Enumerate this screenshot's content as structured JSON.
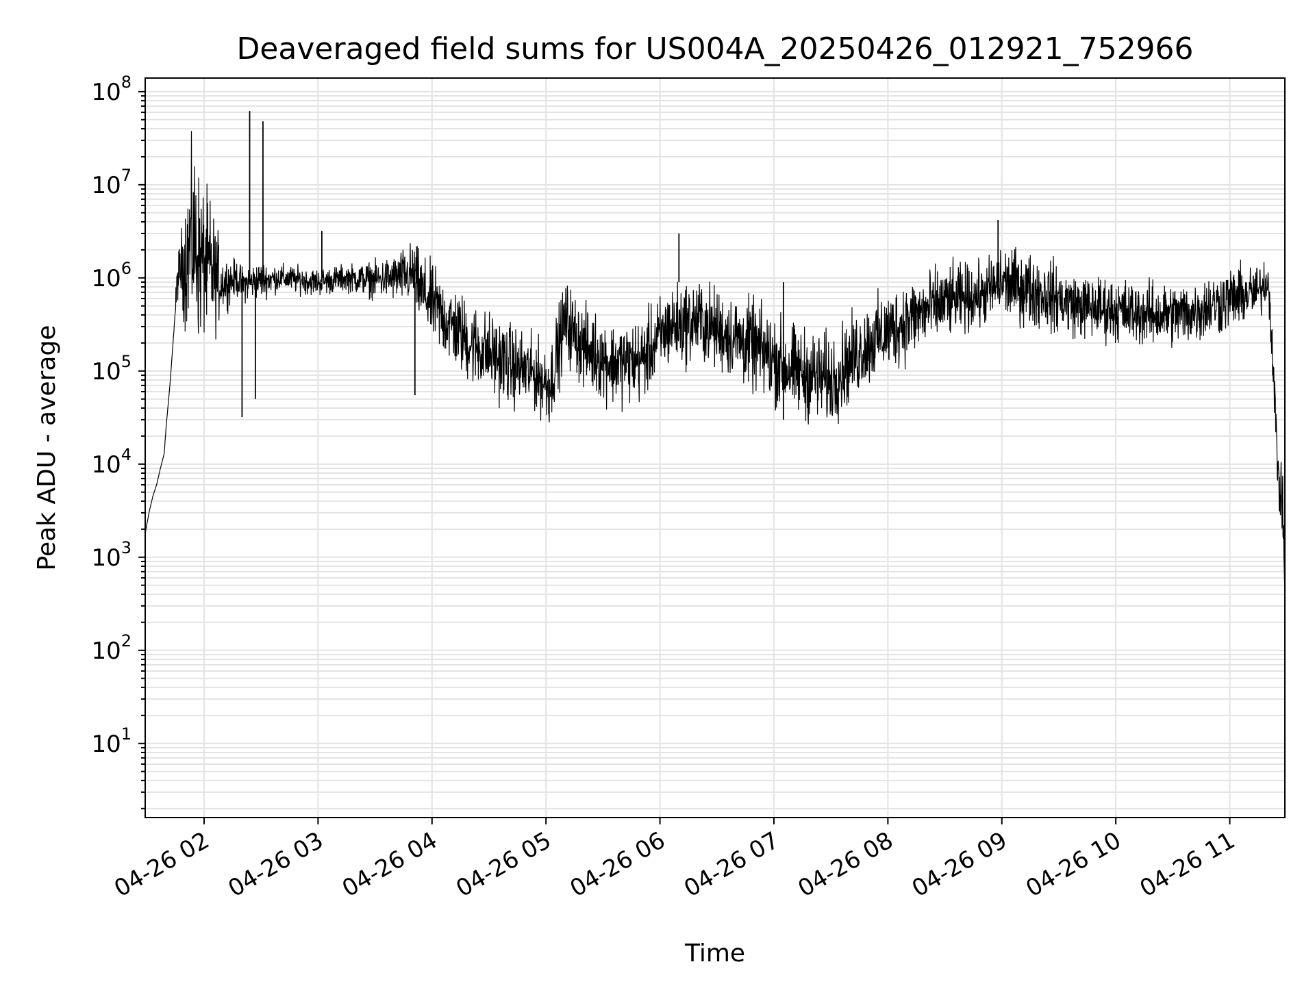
{
  "chart_data": {
    "type": "line",
    "title": "Deaveraged field sums for US004A_20250426_012921_752966",
    "xlabel": "Time",
    "ylabel": "Peak ADU - average",
    "yscale": "log",
    "xlim": [
      "2025-04-26 01:29",
      "2025-04-26 11:29"
    ],
    "ylim": [
      1.6,
      140000000
    ],
    "grid": true,
    "line_color": "#000000",
    "grid_color": "#e3e3e3",
    "x_ticks": [
      {
        "value": "2025-04-26 02:00",
        "label": "04-26 02"
      },
      {
        "value": "2025-04-26 03:00",
        "label": "04-26 03"
      },
      {
        "value": "2025-04-26 04:00",
        "label": "04-26 04"
      },
      {
        "value": "2025-04-26 05:00",
        "label": "04-26 05"
      },
      {
        "value": "2025-04-26 06:00",
        "label": "04-26 06"
      },
      {
        "value": "2025-04-26 07:00",
        "label": "04-26 07"
      },
      {
        "value": "2025-04-26 08:00",
        "label": "04-26 08"
      },
      {
        "value": "2025-04-26 09:00",
        "label": "04-26 09"
      },
      {
        "value": "2025-04-26 10:00",
        "label": "04-26 10"
      },
      {
        "value": "2025-04-26 11:00",
        "label": "04-26 11"
      }
    ],
    "y_ticks": [
      {
        "value": 10,
        "base": "10",
        "exp": "1"
      },
      {
        "value": 100,
        "base": "10",
        "exp": "2"
      },
      {
        "value": 1000,
        "base": "10",
        "exp": "3"
      },
      {
        "value": 10000,
        "base": "10",
        "exp": "4"
      },
      {
        "value": 100000,
        "base": "10",
        "exp": "5"
      },
      {
        "value": 1000000,
        "base": "10",
        "exp": "6"
      },
      {
        "value": 10000000,
        "base": "10",
        "exp": "7"
      },
      {
        "value": 100000000,
        "base": "10",
        "exp": "8"
      }
    ],
    "series": [
      {
        "x": [
          "2025-04-26 01:29",
          "2025-04-26 01:31",
          "2025-04-26 01:33",
          "2025-04-26 01:35",
          "2025-04-26 01:37",
          "2025-04-26 01:39",
          "2025-04-26 01:40",
          "2025-04-26 01:42",
          "2025-04-26 01:44",
          "2025-04-26 01:46",
          "2025-04-26 01:48",
          "2025-04-26 01:50",
          "2025-04-26 01:52",
          "2025-04-26 01:54",
          "2025-04-26 01:56",
          "2025-04-26 01:58",
          "2025-04-26 02:00",
          "2025-04-26 02:03",
          "2025-04-26 02:06",
          "2025-04-26 02:10",
          "2025-04-26 02:13",
          "2025-04-26 02:17",
          "2025-04-26 02:20",
          "2025-04-26 02:25",
          "2025-04-26 02:30",
          "2025-04-26 02:40",
          "2025-04-26 02:50",
          "2025-04-26 03:00",
          "2025-04-26 03:15",
          "2025-04-26 03:30",
          "2025-04-26 03:40",
          "2025-04-26 03:50",
          "2025-04-26 03:55",
          "2025-04-26 04:05",
          "2025-04-26 04:20",
          "2025-04-26 04:40",
          "2025-04-26 04:55",
          "2025-04-26 05:02",
          "2025-04-26 05:10",
          "2025-04-26 05:20",
          "2025-04-26 05:35",
          "2025-04-26 05:50",
          "2025-04-26 06:05",
          "2025-04-26 06:20",
          "2025-04-26 06:35",
          "2025-04-26 06:50",
          "2025-04-26 07:10",
          "2025-04-26 07:30",
          "2025-04-26 07:50",
          "2025-04-26 08:10",
          "2025-04-26 08:30",
          "2025-04-26 08:50",
          "2025-04-26 09:00",
          "2025-04-26 09:20",
          "2025-04-26 09:40",
          "2025-04-26 10:00",
          "2025-04-26 10:20",
          "2025-04-26 10:40",
          "2025-04-26 11:00",
          "2025-04-26 11:15",
          "2025-04-26 11:20",
          "2025-04-26 11:22",
          "2025-04-26 11:24",
          "2025-04-26 11:26",
          "2025-04-26 11:28",
          "2025-04-26 11:29"
        ],
        "y": [
          1800,
          3000,
          4500,
          6000,
          9000,
          13000,
          25000,
          70000,
          250000,
          1000000,
          1300000,
          1500000,
          2000000,
          2500000,
          2200000,
          1500000,
          1400000,
          1200000,
          1000000,
          900000,
          900000,
          1000000,
          850000,
          900000,
          950000,
          1000000,
          950000,
          900000,
          1000000,
          950000,
          1000000,
          1100000,
          700000,
          400000,
          200000,
          120000,
          90000,
          70000,
          350000,
          180000,
          120000,
          130000,
          300000,
          350000,
          250000,
          180000,
          100000,
          80000,
          200000,
          350000,
          550000,
          650000,
          900000,
          700000,
          500000,
          450000,
          400000,
          420000,
          600000,
          700000,
          1000000,
          300000,
          30000,
          6000,
          3000,
          400
        ],
        "noise_decades": [
          0,
          0,
          0,
          0,
          0,
          0,
          0,
          0,
          0,
          0.25,
          0.4,
          0.7,
          0.9,
          1,
          1,
          0.9,
          0.8,
          0.8,
          0.6,
          0.3,
          0.25,
          0.2,
          0.2,
          0.2,
          0.2,
          0.15,
          0.15,
          0.15,
          0.15,
          0.2,
          0.25,
          0.35,
          0.4,
          0.45,
          0.45,
          0.45,
          0.4,
          0.45,
          0.45,
          0.45,
          0.45,
          0.45,
          0.45,
          0.45,
          0.45,
          0.5,
          0.5,
          0.5,
          0.45,
          0.45,
          0.4,
          0.35,
          0.4,
          0.4,
          0.35,
          0.35,
          0.35,
          0.35,
          0.35,
          0.3,
          0.25,
          0.35,
          0.35,
          0.35,
          0.3,
          0
        ]
      }
    ],
    "spikes": [
      {
        "x": "2025-04-26 02:24",
        "y": 62000000
      },
      {
        "x": "2025-04-26 02:31",
        "y": 48000000
      },
      {
        "x": "2025-04-26 02:20",
        "y": 32000
      },
      {
        "x": "2025-04-26 02:27",
        "y": 50000
      },
      {
        "x": "2025-04-26 08:58",
        "y": 4200000
      },
      {
        "x": "2025-04-26 06:10",
        "y": 3000000
      },
      {
        "x": "2025-04-26 07:05",
        "y": 30000
      },
      {
        "x": "2025-04-26 03:02",
        "y": 3200000
      },
      {
        "x": "2025-04-26 03:51",
        "y": 55000
      }
    ]
  }
}
